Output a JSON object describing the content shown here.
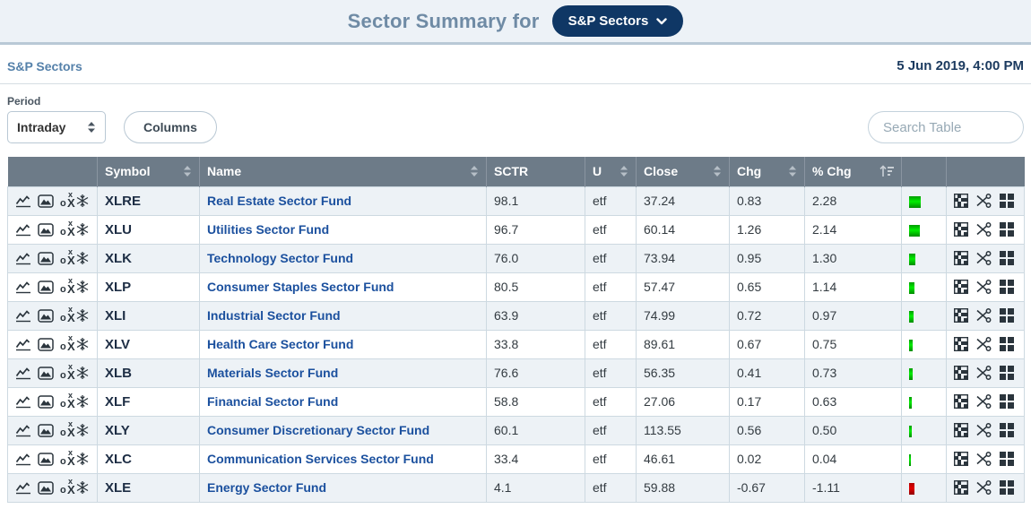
{
  "header": {
    "title": "Sector Summary for",
    "selector_label": "S&P Sectors"
  },
  "subheader": {
    "breadcrumb": "S&P Sectors",
    "timestamp": "5 Jun 2019, 4:00 PM"
  },
  "controls": {
    "period_label": "Period",
    "period_value": "Intraday",
    "columns_label": "Columns",
    "search_placeholder": "Search Table"
  },
  "table": {
    "columns": [
      {
        "label": "",
        "sort": "none"
      },
      {
        "label": "Symbol",
        "sort": "sortable"
      },
      {
        "label": "Name",
        "sort": "sortable"
      },
      {
        "label": "SCTR",
        "sort": "none"
      },
      {
        "label": "U",
        "sort": "sortable"
      },
      {
        "label": "Close",
        "sort": "sortable"
      },
      {
        "label": "Chg",
        "sort": "sortable"
      },
      {
        "label": "% Chg",
        "sort": "active-desc"
      },
      {
        "label": "",
        "sort": "none"
      },
      {
        "label": "",
        "sort": "none"
      }
    ],
    "rows": [
      {
        "symbol": "XLRE",
        "name": "Real Estate Sector Fund",
        "sctr": "98.1",
        "u": "etf",
        "close": "37.24",
        "chg": "0.83",
        "pct_chg": "2.28"
      },
      {
        "symbol": "XLU",
        "name": "Utilities Sector Fund",
        "sctr": "96.7",
        "u": "etf",
        "close": "60.14",
        "chg": "1.26",
        "pct_chg": "2.14"
      },
      {
        "symbol": "XLK",
        "name": "Technology Sector Fund",
        "sctr": "76.0",
        "u": "etf",
        "close": "73.94",
        "chg": "0.95",
        "pct_chg": "1.30"
      },
      {
        "symbol": "XLP",
        "name": "Consumer Staples Sector Fund",
        "sctr": "80.5",
        "u": "etf",
        "close": "57.47",
        "chg": "0.65",
        "pct_chg": "1.14"
      },
      {
        "symbol": "XLI",
        "name": "Industrial Sector Fund",
        "sctr": "63.9",
        "u": "etf",
        "close": "74.99",
        "chg": "0.72",
        "pct_chg": "0.97"
      },
      {
        "symbol": "XLV",
        "name": "Health Care Sector Fund",
        "sctr": "33.8",
        "u": "etf",
        "close": "89.61",
        "chg": "0.67",
        "pct_chg": "0.75"
      },
      {
        "symbol": "XLB",
        "name": "Materials Sector Fund",
        "sctr": "76.6",
        "u": "etf",
        "close": "56.35",
        "chg": "0.41",
        "pct_chg": "0.73"
      },
      {
        "symbol": "XLF",
        "name": "Financial Sector Fund",
        "sctr": "58.8",
        "u": "etf",
        "close": "27.06",
        "chg": "0.17",
        "pct_chg": "0.63"
      },
      {
        "symbol": "XLY",
        "name": "Consumer Discretionary Sector Fund",
        "sctr": "60.1",
        "u": "etf",
        "close": "113.55",
        "chg": "0.56",
        "pct_chg": "0.50"
      },
      {
        "symbol": "XLC",
        "name": "Communication Services Sector Fund",
        "sctr": "33.4",
        "u": "etf",
        "close": "46.61",
        "chg": "0.02",
        "pct_chg": "0.04"
      },
      {
        "symbol": "XLE",
        "name": "Energy Sector Fund",
        "sctr": "4.1",
        "u": "etf",
        "close": "59.88",
        "chg": "-0.67",
        "pct_chg": "-1.11"
      }
    ]
  },
  "icons": {
    "pnf_o": "o",
    "pnf_small_x": "x",
    "pnf_X": "X"
  },
  "colors": {
    "pill_background": "#0f3765",
    "header_background": "#6d7b88",
    "row_alt_background": "#edf2f6",
    "positive_bar": "#00cc00",
    "negative_bar": "#cc0000",
    "name_link": "#1b509e"
  }
}
